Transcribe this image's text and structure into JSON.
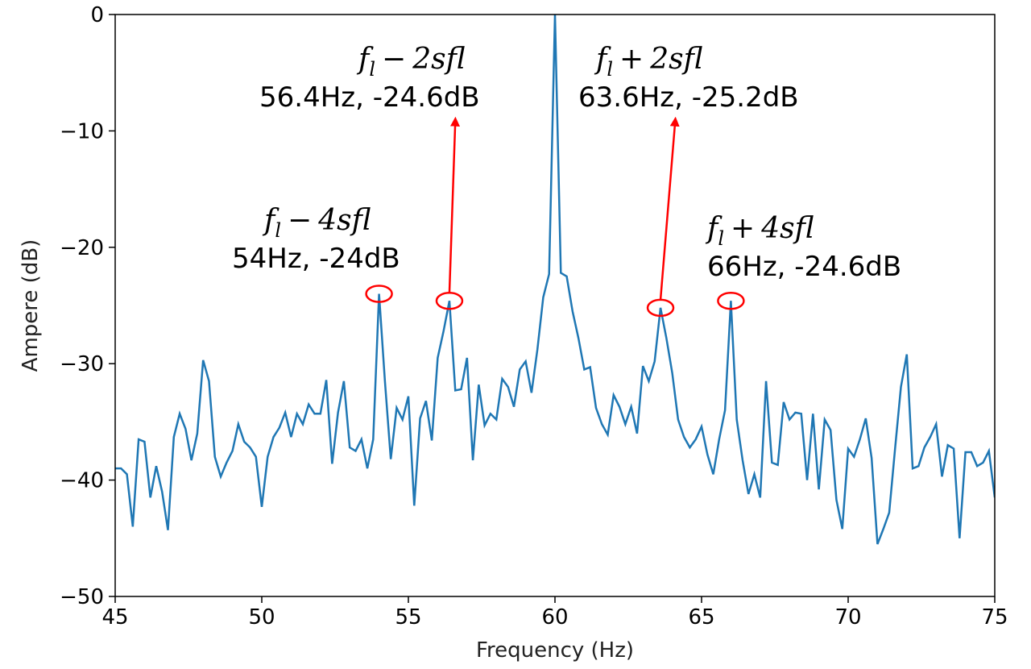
{
  "chart_data": {
    "type": "line",
    "title": "",
    "xlabel": "Frequency (Hz)",
    "ylabel": "Ampere (dB)",
    "xlim": [
      45,
      75
    ],
    "ylim": [
      -50,
      0
    ],
    "xticks": [
      45,
      50,
      55,
      60,
      65,
      70,
      75
    ],
    "yticks": [
      0,
      -10,
      -20,
      -30,
      -40,
      -50
    ],
    "xtick_labels": [
      "45",
      "50",
      "55",
      "60",
      "65",
      "70",
      "75"
    ],
    "ytick_labels": [
      "0",
      "−10",
      "−20",
      "−30",
      "−40",
      "−50"
    ],
    "grid": false,
    "line_color": "#1f77b4",
    "annotation_color": "#ff0000",
    "series": [
      {
        "x": [
          45.0,
          45.2,
          45.4,
          45.6,
          45.8,
          46.0,
          46.2,
          46.4,
          46.6,
          46.8,
          47.0,
          47.2,
          47.4,
          47.6,
          47.8,
          48.0,
          48.2,
          48.4,
          48.6,
          48.8,
          49.0,
          49.2,
          49.4,
          49.6,
          49.8,
          50.0,
          50.2,
          50.4,
          50.6,
          50.8,
          51.0,
          51.2,
          51.4,
          51.6,
          51.8,
          52.0,
          52.2,
          52.4,
          52.6,
          52.8,
          53.0,
          53.2,
          53.4,
          53.6,
          53.8,
          54.0,
          54.2,
          54.4,
          54.6,
          54.8,
          55.0,
          55.2,
          55.4,
          55.6,
          55.8,
          56.0,
          56.2,
          56.4,
          56.6,
          56.8,
          57.0,
          57.2,
          57.4,
          57.6,
          57.8,
          58.0,
          58.2,
          58.4,
          58.6,
          58.8,
          59.0,
          59.2,
          59.4,
          59.6,
          59.8,
          60.0,
          60.2,
          60.4,
          60.6,
          60.8,
          61.0,
          61.2,
          61.4,
          61.6,
          61.8,
          62.0,
          62.2,
          62.4,
          62.6,
          62.8,
          63.0,
          63.2,
          63.4,
          63.6,
          63.8,
          64.0,
          64.2,
          64.4,
          64.6,
          64.8,
          65.0,
          65.2,
          65.4,
          65.6,
          65.8,
          66.0,
          66.2,
          66.4,
          66.6,
          66.8,
          67.0,
          67.2,
          67.4,
          67.6,
          67.8,
          68.0,
          68.2,
          68.4,
          68.6,
          68.8,
          69.0,
          69.2,
          69.4,
          69.6,
          69.8,
          70.0,
          70.2,
          70.4,
          70.6,
          70.8,
          71.0,
          71.2,
          71.4,
          71.6,
          71.8,
          72.0,
          72.2,
          72.4,
          72.6,
          72.8,
          73.0,
          73.2,
          73.4,
          73.6,
          73.8,
          74.0,
          74.2,
          74.4,
          74.6,
          74.8,
          75.0
        ],
        "y": [
          -39,
          -39,
          -39.5,
          -44,
          -36.5,
          -36.7,
          -41.5,
          -38.8,
          -41,
          -44.3,
          -36.3,
          -34.3,
          -35.6,
          -38.3,
          -36,
          -29.7,
          -31.5,
          -38,
          -39.7,
          -38.5,
          -37.5,
          -35.2,
          -36.7,
          -37.2,
          -38,
          -42.3,
          -38,
          -36.3,
          -35.5,
          -34.2,
          -36.3,
          -34.3,
          -35.2,
          -33.5,
          -34.3,
          -34.3,
          -31.4,
          -38.6,
          -34.2,
          -31.5,
          -37.2,
          -37.5,
          -36.5,
          -39,
          -36.5,
          -24,
          -31.5,
          -38.2,
          -33.8,
          -34.8,
          -32.8,
          -42.2,
          -34.7,
          -33.2,
          -36.6,
          -29.5,
          -27.2,
          -24.6,
          -32.3,
          -32.2,
          -29.5,
          -38.3,
          -31.8,
          -35.3,
          -34.3,
          -34.8,
          -31.3,
          -32,
          -33.7,
          -30.5,
          -29.8,
          -32.5,
          -28.8,
          -24.3,
          -22.3,
          0,
          -22.2,
          -22.5,
          -25.5,
          -27.8,
          -30.5,
          -30.3,
          -33.8,
          -35.2,
          -36.1,
          -32.7,
          -33.7,
          -35.2,
          -33.7,
          -36,
          -30.2,
          -31.5,
          -29.8,
          -25.2,
          -27.8,
          -30.8,
          -34.8,
          -36.3,
          -37.2,
          -36.5,
          -35.4,
          -37.8,
          -39.5,
          -36.5,
          -34,
          -24.6,
          -34.8,
          -38.3,
          -41.2,
          -39.5,
          -41.5,
          -31.5,
          -38.5,
          -38.7,
          -33.3,
          -34.8,
          -34.2,
          -34.3,
          -40,
          -34.3,
          -40.8,
          -34.8,
          -35.7,
          -41.7,
          -44.2,
          -37.3,
          -38,
          -36.5,
          -34.7,
          -38.1,
          -45.5,
          -44.2,
          -42.8,
          -37.3,
          -32,
          -29.2,
          -39,
          -38.8,
          -37.2,
          -36.3,
          -35.2,
          -39.7,
          -37,
          -37.3,
          -45,
          -37.6,
          -37.6,
          -38.8,
          -38.5,
          -37.5,
          -41.5
        ]
      }
    ],
    "annotations": [
      {
        "formula_italic": "f",
        "formula_sub": "l",
        "formula_op": "−",
        "formula_rest": "4sfl",
        "value_text": "54Hz, -24dB",
        "peak": [
          54.0,
          -24.0
        ]
      },
      {
        "formula_italic": "f",
        "formula_sub": "l",
        "formula_op": "−",
        "formula_rest": "2sfl",
        "value_text": "56.4Hz, -24.6dB",
        "peak": [
          56.4,
          -24.6
        ],
        "arrow_to": [
          56.6,
          -8.5
        ]
      },
      {
        "formula_italic": "f",
        "formula_sub": "l",
        "formula_op": "+",
        "formula_rest": "2sfl",
        "value_text": "63.6Hz, -25.2dB",
        "peak": [
          63.6,
          -25.2
        ],
        "arrow_to": [
          64.1,
          -8.5
        ]
      },
      {
        "formula_italic": "f",
        "formula_sub": "l",
        "formula_op": "+",
        "formula_rest": "4sfl",
        "value_text": "66Hz, -24.6dB",
        "peak": [
          66.0,
          -24.6
        ]
      }
    ]
  }
}
